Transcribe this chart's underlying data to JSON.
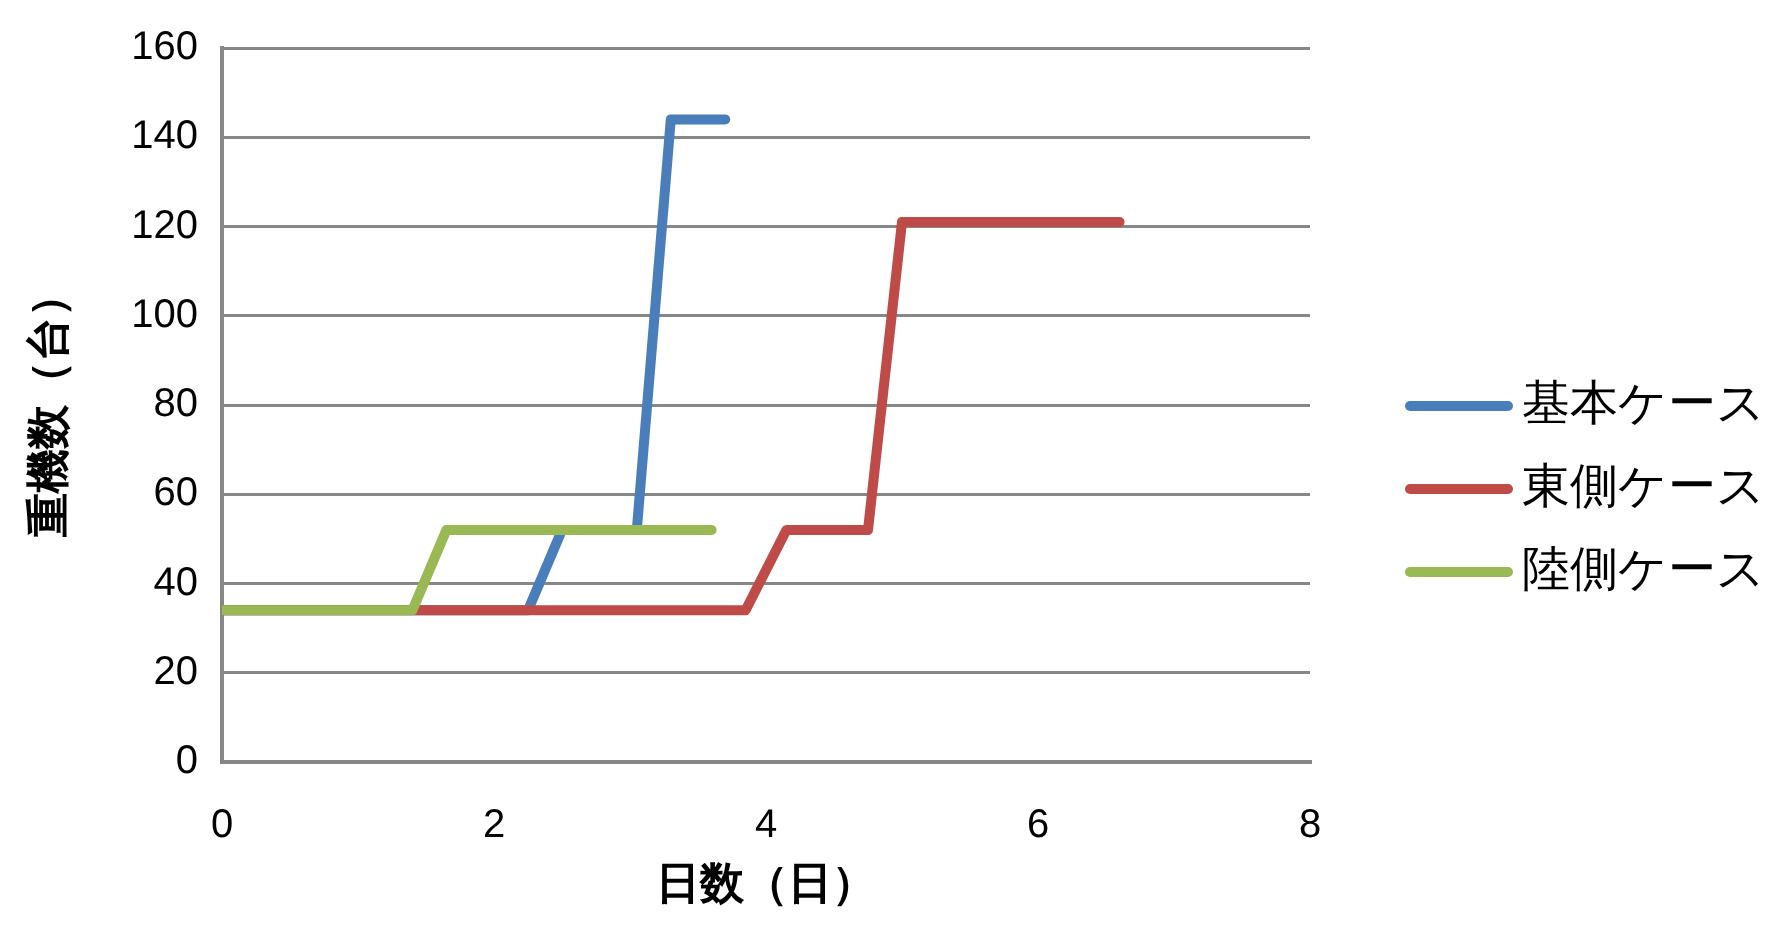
{
  "chart_data": {
    "type": "line",
    "xlabel": "日数（日）",
    "ylabel": "重機数（台）",
    "xlim": [
      0,
      8
    ],
    "xticks": [
      0,
      2,
      4,
      6,
      8
    ],
    "ylim": [
      0,
      160
    ],
    "yticks": [
      0,
      20,
      40,
      60,
      80,
      100,
      120,
      140,
      160
    ],
    "grid": "y",
    "legend": "right",
    "marker": "none",
    "line_style": "solid",
    "series": [
      {
        "name": "基本ケース",
        "color": "#4a7ebb",
        "x": [
          0,
          2.25,
          2.5,
          3.05,
          3.3,
          3.7
        ],
        "values": [
          34,
          34,
          52,
          52,
          144,
          144
        ]
      },
      {
        "name": "東側ケース",
        "color": "#be4b48",
        "x": [
          0,
          3.85,
          4.15,
          4.75,
          5.0,
          6.6
        ],
        "values": [
          34,
          34,
          52,
          52,
          121,
          121
        ]
      },
      {
        "name": "陸側ケース",
        "color": "#98b954",
        "x": [
          0,
          1.4,
          1.65,
          3.6
        ],
        "values": [
          34,
          34,
          52,
          52
        ]
      }
    ]
  }
}
